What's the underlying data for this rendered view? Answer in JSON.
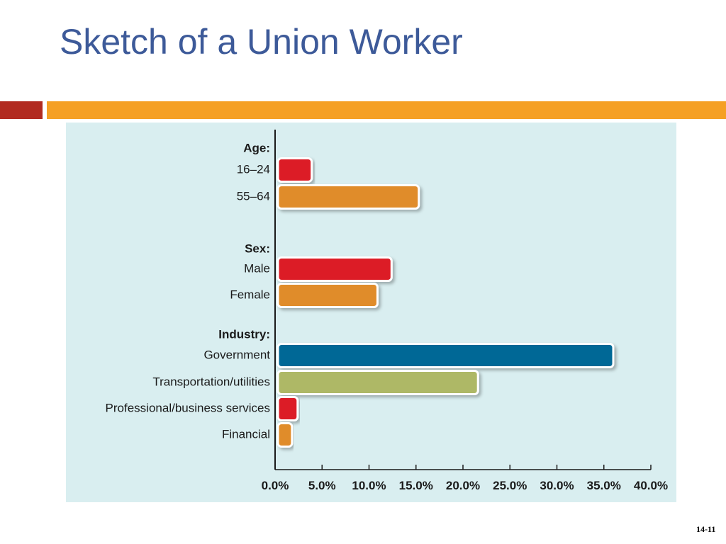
{
  "slide": {
    "title": "Sketch of a Union Worker",
    "page_number": "14-11"
  },
  "colors": {
    "title": "#3d5a99",
    "accent_red": "#b22a20",
    "accent_orange": "#f5a024",
    "panel": "#d9eef0"
  },
  "chart_data": {
    "type": "bar",
    "orientation": "horizontal",
    "title": "",
    "xlabel": "",
    "ylabel": "",
    "xlim": [
      0,
      40
    ],
    "x_ticks": [
      "0.0%",
      "5.0%",
      "10.0%",
      "15.0%",
      "20.0%",
      "25.0%",
      "30.0%",
      "35.0%",
      "40.0%"
    ],
    "grid": false,
    "legend": "none",
    "groups": [
      {
        "label": "Age:",
        "bars": [
          {
            "label": "16–24",
            "value": 3.9,
            "color": "#dc1f26"
          },
          {
            "label": "55–64",
            "value": 15.3,
            "color": "#e08c2a"
          }
        ]
      },
      {
        "label": "Sex:",
        "bars": [
          {
            "label": "Male",
            "value": 12.4,
            "color": "#dc1f26"
          },
          {
            "label": "Female",
            "value": 10.9,
            "color": "#e08c2a"
          }
        ]
      },
      {
        "label": "Industry:",
        "bars": [
          {
            "label": "Government",
            "value": 36.0,
            "color": "#006796"
          },
          {
            "label": "Transportation/utilities",
            "value": 21.6,
            "color": "#aeb866"
          },
          {
            "label": "Professional/business services",
            "value": 2.4,
            "color": "#dc1f26"
          },
          {
            "label": "Financial",
            "value": 1.8,
            "color": "#e08c2a"
          }
        ]
      }
    ]
  }
}
